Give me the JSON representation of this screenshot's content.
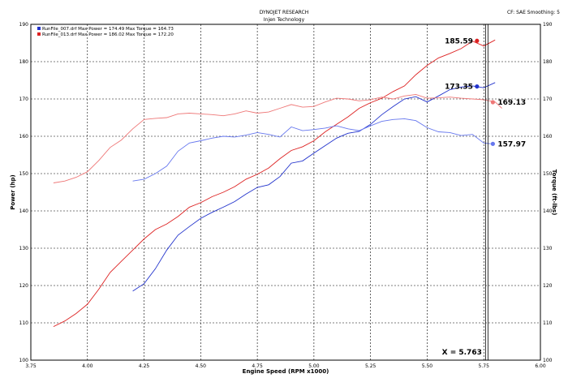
{
  "header": {
    "title": "DYNOJET RESEARCH",
    "subtitle": "Injen Technology",
    "settings": "CF: SAE  Smoothing: 5"
  },
  "legend": {
    "entries": [
      {
        "text": "RunFile_007.drf Max Power = 174.49     Max Torque = 164.73",
        "color": "#2233cc"
      },
      {
        "text": "RunFile_013.drf Max Power = 186.02     Max Torque = 172.20",
        "color": "#dd2222"
      }
    ]
  },
  "cursor": {
    "label": "X = 5.763"
  },
  "chart_data": {
    "type": "line",
    "xlabel": "Engine Speed (RPM x1000)",
    "ylabel": "Power (hp)",
    "y2label": "Torque (ft-lbs)",
    "xlim": [
      3.75,
      6.0
    ],
    "ylim": [
      100,
      190
    ],
    "x_ticks": [
      "3.75",
      "4.00",
      "4.25",
      "4.50",
      "4.75",
      "5.00",
      "5.25",
      "5.50",
      "5.75",
      "6.00"
    ],
    "y_ticks": [
      "100",
      "110",
      "120",
      "130",
      "140",
      "150",
      "160",
      "170",
      "180",
      "190"
    ],
    "grid": true,
    "series": [
      {
        "name": "RunFile_007.drf Power",
        "color": "#2233cc",
        "points": [
          [
            4.2,
            118.5
          ],
          [
            4.25,
            120.5
          ],
          [
            4.3,
            124.5
          ],
          [
            4.35,
            129.5
          ],
          [
            4.4,
            133.5
          ],
          [
            4.45,
            135.8
          ],
          [
            4.5,
            138
          ],
          [
            4.55,
            139.6
          ],
          [
            4.6,
            141
          ],
          [
            4.65,
            142.5
          ],
          [
            4.7,
            144.5
          ],
          [
            4.75,
            146.3
          ],
          [
            4.8,
            147
          ],
          [
            4.85,
            149.2
          ],
          [
            4.9,
            152.8
          ],
          [
            4.95,
            153.4
          ],
          [
            5.0,
            155.5
          ],
          [
            5.05,
            157.5
          ],
          [
            5.1,
            159.5
          ],
          [
            5.15,
            160.8
          ],
          [
            5.2,
            161.3
          ],
          [
            5.25,
            163.2
          ],
          [
            5.3,
            165.8
          ],
          [
            5.35,
            168
          ],
          [
            5.4,
            170
          ],
          [
            5.45,
            170.6
          ],
          [
            5.5,
            169.2
          ],
          [
            5.55,
            170.8
          ],
          [
            5.6,
            172.5
          ],
          [
            5.65,
            173.2
          ],
          [
            5.7,
            173.5
          ],
          [
            5.75,
            173
          ],
          [
            5.8,
            174.4
          ]
        ]
      },
      {
        "name": "RunFile_013.drf Power",
        "color": "#dd2222",
        "points": [
          [
            3.85,
            109
          ],
          [
            3.9,
            110.5
          ],
          [
            3.95,
            112.5
          ],
          [
            4.0,
            115
          ],
          [
            4.05,
            119
          ],
          [
            4.1,
            123.5
          ],
          [
            4.15,
            126.5
          ],
          [
            4.2,
            129.5
          ],
          [
            4.25,
            132.5
          ],
          [
            4.3,
            135
          ],
          [
            4.35,
            136.5
          ],
          [
            4.4,
            138.5
          ],
          [
            4.45,
            141
          ],
          [
            4.5,
            142.2
          ],
          [
            4.55,
            143.8
          ],
          [
            4.6,
            145
          ],
          [
            4.65,
            146.5
          ],
          [
            4.7,
            148.5
          ],
          [
            4.75,
            149.8
          ],
          [
            4.8,
            151.5
          ],
          [
            4.85,
            154
          ],
          [
            4.9,
            156.2
          ],
          [
            4.95,
            157.2
          ],
          [
            5.0,
            158.8
          ],
          [
            5.05,
            161.2
          ],
          [
            5.1,
            163.2
          ],
          [
            5.15,
            165.2
          ],
          [
            5.2,
            167.5
          ],
          [
            5.25,
            169
          ],
          [
            5.3,
            170.2
          ],
          [
            5.35,
            172
          ],
          [
            5.4,
            173.5
          ],
          [
            5.45,
            176.5
          ],
          [
            5.5,
            179
          ],
          [
            5.55,
            181
          ],
          [
            5.6,
            182.2
          ],
          [
            5.65,
            183.5
          ],
          [
            5.7,
            185.5
          ],
          [
            5.75,
            184.2
          ],
          [
            5.8,
            185.8
          ]
        ]
      },
      {
        "name": "RunFile_007.drf Torque",
        "color": "#6677ee",
        "points": [
          [
            4.2,
            148
          ],
          [
            4.25,
            148.5
          ],
          [
            4.3,
            150
          ],
          [
            4.35,
            152
          ],
          [
            4.4,
            156
          ],
          [
            4.45,
            158.2
          ],
          [
            4.5,
            158.8
          ],
          [
            4.55,
            159.5
          ],
          [
            4.6,
            160
          ],
          [
            4.65,
            159.8
          ],
          [
            4.7,
            160.3
          ],
          [
            4.75,
            161
          ],
          [
            4.8,
            160.5
          ],
          [
            4.85,
            159.8
          ],
          [
            4.9,
            162.5
          ],
          [
            4.95,
            161.5
          ],
          [
            5.0,
            161.8
          ],
          [
            5.05,
            162.2
          ],
          [
            5.1,
            162.8
          ],
          [
            5.15,
            162
          ],
          [
            5.2,
            161.5
          ],
          [
            5.25,
            162.8
          ],
          [
            5.3,
            164
          ],
          [
            5.35,
            164.5
          ],
          [
            5.4,
            164.7
          ],
          [
            5.45,
            164.2
          ],
          [
            5.5,
            162.3
          ],
          [
            5.55,
            161.2
          ],
          [
            5.6,
            161
          ],
          [
            5.65,
            160.2
          ],
          [
            5.7,
            160.5
          ],
          [
            5.75,
            158.2
          ],
          [
            5.78,
            158
          ]
        ]
      },
      {
        "name": "RunFile_013.drf Torque",
        "color": "#ee7777",
        "points": [
          [
            3.85,
            147.5
          ],
          [
            3.9,
            148
          ],
          [
            3.95,
            149
          ],
          [
            4.0,
            150.5
          ],
          [
            4.05,
            153.5
          ],
          [
            4.1,
            157
          ],
          [
            4.15,
            159
          ],
          [
            4.2,
            162
          ],
          [
            4.25,
            164.5
          ],
          [
            4.3,
            164.8
          ],
          [
            4.35,
            165
          ],
          [
            4.4,
            166
          ],
          [
            4.45,
            166.2
          ],
          [
            4.5,
            166
          ],
          [
            4.55,
            165.8
          ],
          [
            4.6,
            165.5
          ],
          [
            4.65,
            166
          ],
          [
            4.7,
            166.8
          ],
          [
            4.75,
            166.2
          ],
          [
            4.8,
            166.5
          ],
          [
            4.85,
            167.5
          ],
          [
            4.9,
            168.5
          ],
          [
            4.95,
            167.8
          ],
          [
            5.0,
            168
          ],
          [
            5.05,
            169.2
          ],
          [
            5.1,
            170.2
          ],
          [
            5.15,
            170
          ],
          [
            5.2,
            169.5
          ],
          [
            5.25,
            169.8
          ],
          [
            5.3,
            170.5
          ],
          [
            5.35,
            170
          ],
          [
            5.4,
            170.8
          ],
          [
            5.45,
            171.2
          ],
          [
            5.5,
            170.2
          ],
          [
            5.55,
            170.3
          ],
          [
            5.6,
            170.5
          ],
          [
            5.65,
            170.2
          ],
          [
            5.7,
            170
          ],
          [
            5.75,
            169.8
          ],
          [
            5.8,
            169.2
          ],
          [
            5.83,
            167.5
          ]
        ]
      }
    ],
    "markers": [
      {
        "x": 5.72,
        "y": 185.59,
        "label": "185.59",
        "color": "#dd2222",
        "side": "left"
      },
      {
        "x": 5.72,
        "y": 173.35,
        "label": "173.35",
        "color": "#2233cc",
        "side": "left"
      },
      {
        "x": 5.79,
        "y": 169.13,
        "label": "169.13",
        "color": "#ee7777",
        "side": "right"
      },
      {
        "x": 5.79,
        "y": 157.97,
        "label": "157.97",
        "color": "#6677ee",
        "side": "right"
      }
    ],
    "cursor_x": 5.763
  }
}
